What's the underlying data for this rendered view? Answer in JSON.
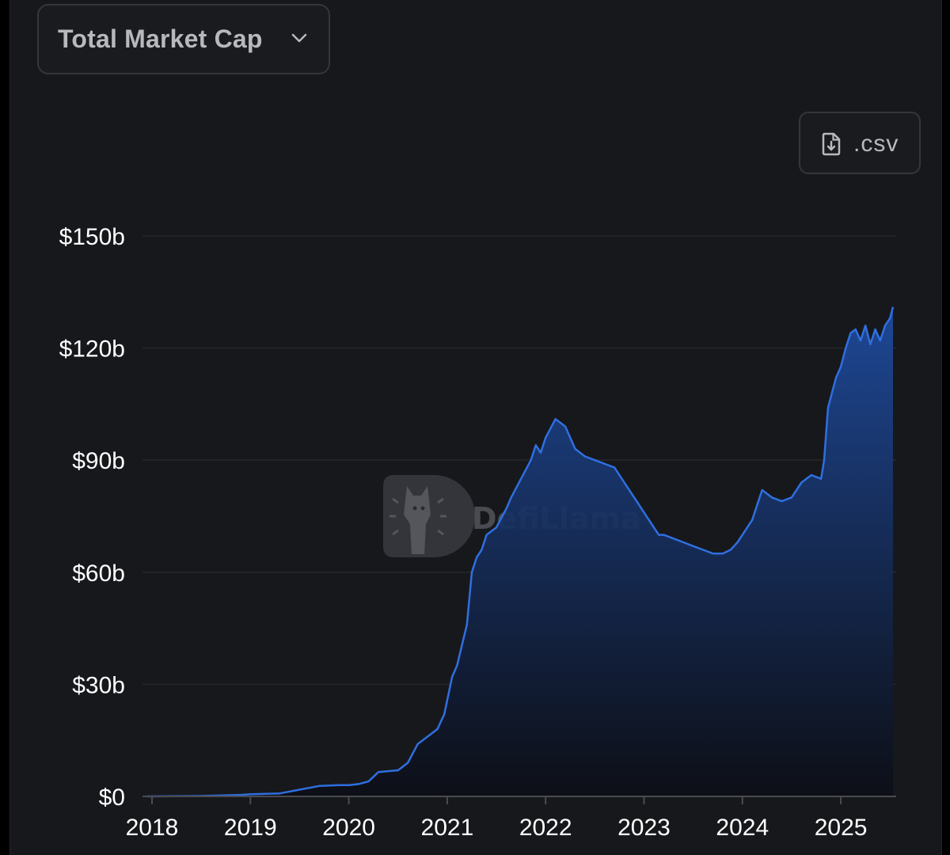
{
  "metric_selector": {
    "label": "Total Market Cap",
    "icon": "chevron-down-icon"
  },
  "csv_button": {
    "label": ".csv",
    "icon": "file-download-icon"
  },
  "watermark": {
    "text": "DefiLlama",
    "icon": "llama-logo-icon"
  },
  "colors": {
    "background": "#17181c",
    "line": "#2f6fe0",
    "area_top": "#1e4a9c",
    "area_bottom": "#0c0e16",
    "grid": "#26272c"
  },
  "chart_data": {
    "type": "area",
    "title": "",
    "xlabel": "",
    "ylabel": "",
    "x_ticks": [
      "2018",
      "2019",
      "2020",
      "2021",
      "2022",
      "2023",
      "2024",
      "2025"
    ],
    "y_ticks": [
      "$0",
      "$30b",
      "$60b",
      "$90b",
      "$120b",
      "$150b"
    ],
    "y_tick_values": [
      0,
      30,
      60,
      90,
      120,
      150
    ],
    "ylim": [
      0,
      150
    ],
    "y_unit": "billions USD",
    "grid": "horizontal",
    "legend": "none",
    "series": [
      {
        "x": [
          2017.95,
          2018.5,
          2018.9,
          2019.0,
          2019.3,
          2019.5,
          2019.7,
          2019.9,
          2020.0,
          2020.1,
          2020.2,
          2020.3,
          2020.5,
          2020.6,
          2020.7,
          2020.8,
          2020.9,
          2020.97,
          2021.05,
          2021.1,
          2021.2,
          2021.25,
          2021.3,
          2021.35,
          2021.4,
          2021.5,
          2021.6,
          2021.65,
          2021.75,
          2021.85,
          2021.9,
          2021.95,
          2022.0,
          2022.1,
          2022.2,
          2022.25,
          2022.3,
          2022.35,
          2022.4,
          2022.5,
          2022.6,
          2022.7,
          2022.8,
          2022.9,
          2023.0,
          2023.1,
          2023.15,
          2023.2,
          2023.3,
          2023.4,
          2023.5,
          2023.6,
          2023.7,
          2023.8,
          2023.88,
          2023.95,
          2024.0,
          2024.1,
          2024.15,
          2024.2,
          2024.3,
          2024.4,
          2024.5,
          2024.6,
          2024.65,
          2024.7,
          2024.8,
          2024.83,
          2024.87,
          2024.95,
          2025.0,
          2025.05,
          2025.1,
          2025.15,
          2025.2,
          2025.25,
          2025.3,
          2025.35,
          2025.4,
          2025.45,
          2025.5,
          2025.53
        ],
        "y": [
          0,
          0.1,
          0.4,
          0.6,
          0.8,
          1.8,
          2.8,
          3.0,
          3.0,
          3.3,
          4.0,
          6.5,
          7.0,
          9.0,
          14.0,
          16.0,
          18.0,
          22.0,
          32.0,
          35.0,
          46.0,
          60.0,
          64.0,
          66.0,
          70.0,
          72.0,
          77.0,
          80.0,
          85.0,
          90.0,
          94.0,
          92.0,
          96.0,
          101.0,
          99.0,
          96.0,
          93.0,
          92.0,
          91.0,
          90.0,
          89.0,
          88.0,
          84.0,
          80.0,
          76.0,
          72.0,
          70.0,
          70.0,
          69.0,
          68.0,
          67.0,
          66.0,
          65.0,
          65.0,
          66.0,
          68.0,
          70.0,
          74.0,
          78.0,
          82.0,
          80.0,
          79.0,
          80.0,
          84.0,
          85.0,
          86.0,
          85.0,
          90.0,
          104.0,
          112.0,
          115.0,
          120.0,
          124.0,
          125.0,
          122.0,
          126.0,
          121.0,
          125.0,
          122.0,
          126.0,
          128.0,
          131.0
        ]
      }
    ]
  }
}
